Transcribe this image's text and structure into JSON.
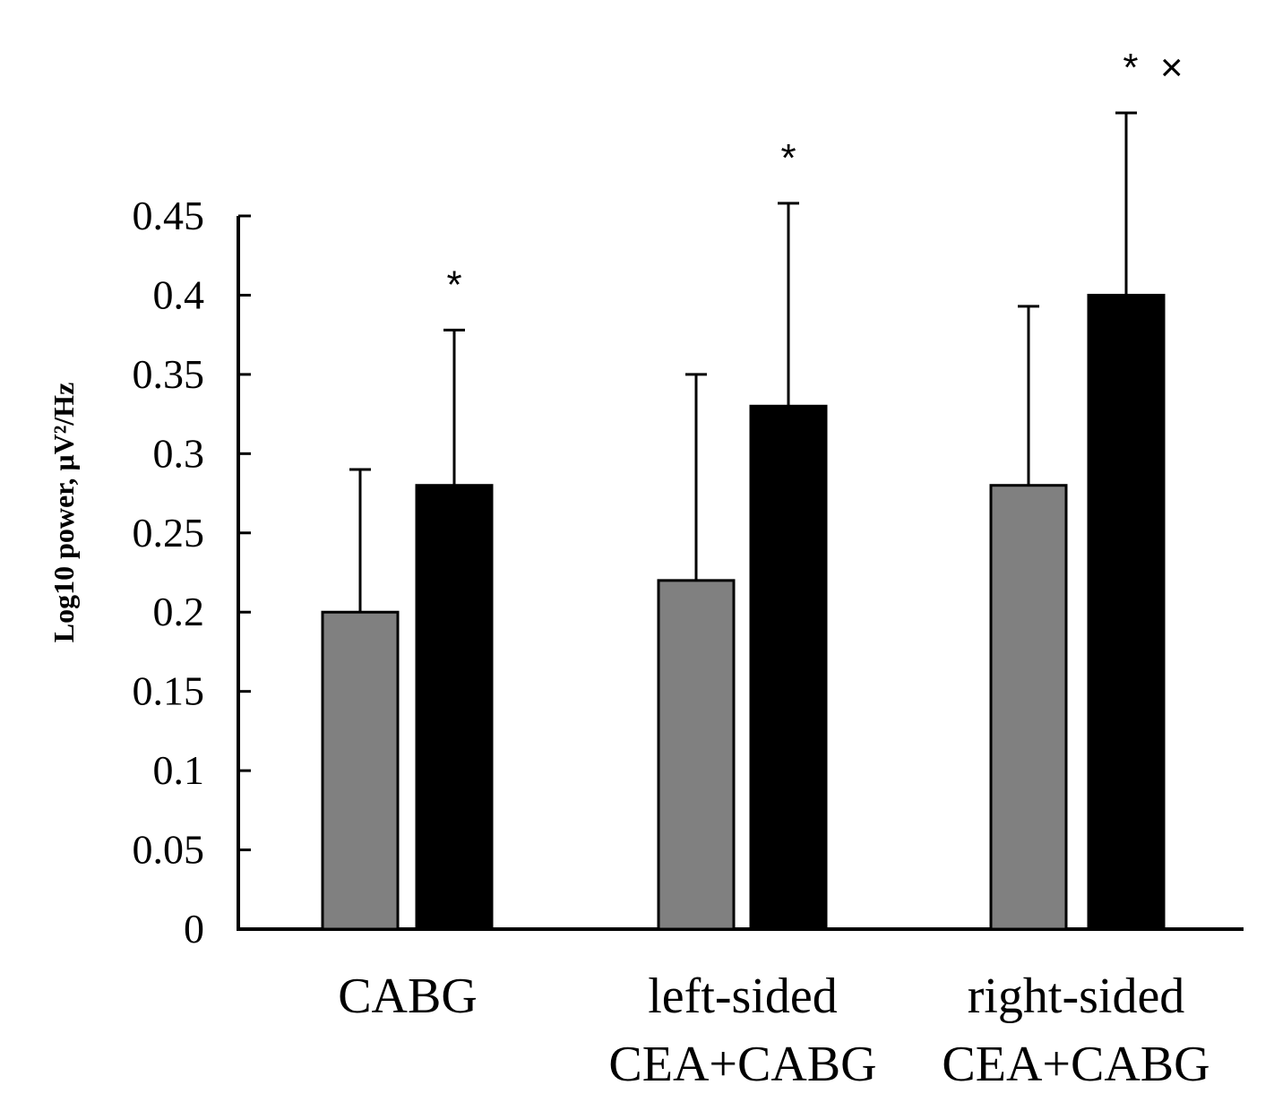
{
  "chart_data": {
    "type": "bar",
    "title": "",
    "xlabel": "",
    "ylabel": "Log10 power, μV²/Hz",
    "ylim": [
      0,
      0.45
    ],
    "yticks": [
      {
        "value": 0,
        "label": "0"
      },
      {
        "value": 0.05,
        "label": "0.05"
      },
      {
        "value": 0.1,
        "label": "0.1"
      },
      {
        "value": 0.15,
        "label": "0.15"
      },
      {
        "value": 0.2,
        "label": "0.2"
      },
      {
        "value": 0.25,
        "label": "0.25"
      },
      {
        "value": 0.3,
        "label": "0.3"
      },
      {
        "value": 0.35,
        "label": "0.35"
      },
      {
        "value": 0.4,
        "label": "0.4"
      },
      {
        "value": 0.45,
        "label": "0.45"
      }
    ],
    "grid": false,
    "categories": [
      {
        "lines": [
          "CABG"
        ]
      },
      {
        "lines": [
          "left-sided",
          "CEA+CABG"
        ]
      },
      {
        "lines": [
          "right-sided",
          "CEA+CABG"
        ]
      }
    ],
    "series": [
      {
        "name": "series-1",
        "color": "#808080",
        "values": [
          0.2,
          0.22,
          0.28
        ],
        "errors": [
          0.09,
          0.13,
          0.113
        ],
        "annotations": [
          "",
          "",
          ""
        ]
      },
      {
        "name": "series-2",
        "color": "#000000",
        "values": [
          0.28,
          0.33,
          0.4
        ],
        "errors": [
          0.098,
          0.128,
          0.115
        ],
        "annotations": [
          "*",
          "*",
          "*  ×"
        ]
      }
    ]
  }
}
